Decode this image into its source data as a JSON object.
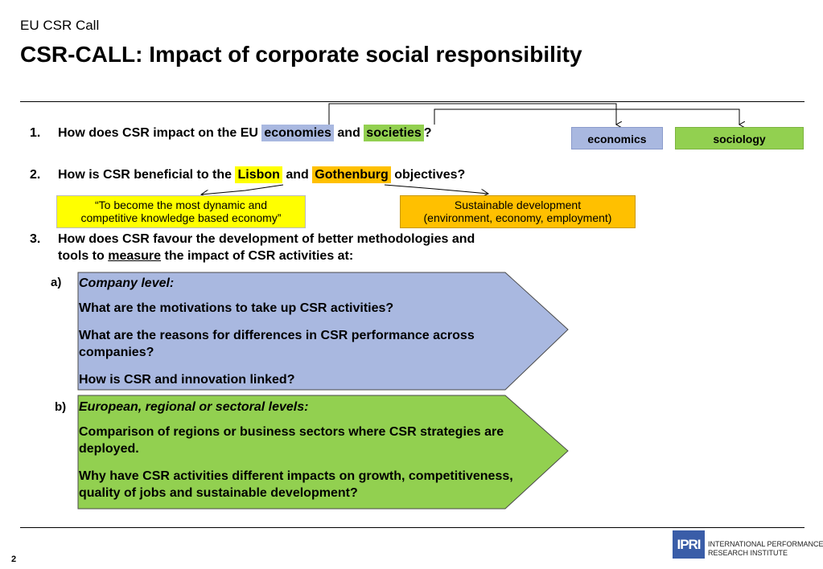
{
  "header": {
    "subtitle": "EU CSR Call",
    "title": "CSR-CALL: Impact of corporate social responsibility"
  },
  "questions": {
    "q1": {
      "number": "1.",
      "prefix": "How does CSR impact on the EU ",
      "hl1": "economies",
      "mid": " and ",
      "hl2": "societies",
      "suffix": "?"
    },
    "q2": {
      "number": "2.",
      "prefix": "How is CSR beneficial to the ",
      "hl1": "Lisbon",
      "mid": " and ",
      "hl2": "Gothenburg",
      "suffix": " objectives?"
    },
    "q3": {
      "number": "3.",
      "line1": "How does CSR favour the development of better methodologies and",
      "line2_prefix": "tools to ",
      "line2_underlined": "measure",
      "line2_suffix": " the impact of CSR activities at:"
    }
  },
  "tags": {
    "economics": "economics",
    "sociology": "sociology"
  },
  "callouts": {
    "lisbon_line1": "“To become the most dynamic and",
    "lisbon_line2": "competitive knowledge based economy”",
    "gothenburg_line1": "Sustainable development",
    "gothenburg_line2": "(environment, economy, employment)"
  },
  "panel_a": {
    "letter": "a)",
    "heading": "Company level:",
    "items": [
      "What are the motivations to take up CSR activities?",
      "What are the reasons for differences in CSR performance across companies?",
      "How is CSR and innovation linked?"
    ]
  },
  "panel_b": {
    "letter": "b)",
    "heading": "European, regional or sectoral levels:",
    "items": [
      "Comparison of regions or business sectors where CSR strategies are deployed.",
      "Why have CSR activities different impacts on growth, competitiveness, quality of jobs and sustainable development?"
    ]
  },
  "footer": {
    "page_number": "2",
    "logo_mark": "IPRI",
    "logo_line1": "INTERNATIONAL PERFORMANCE",
    "logo_line2": "RESEARCH INSTITUTE"
  },
  "colors": {
    "blue": "#a9b8e0",
    "green": "#92d050",
    "yellow": "#ffff00",
    "orange": "#ffc000",
    "logo_blue": "#3a5da8"
  }
}
